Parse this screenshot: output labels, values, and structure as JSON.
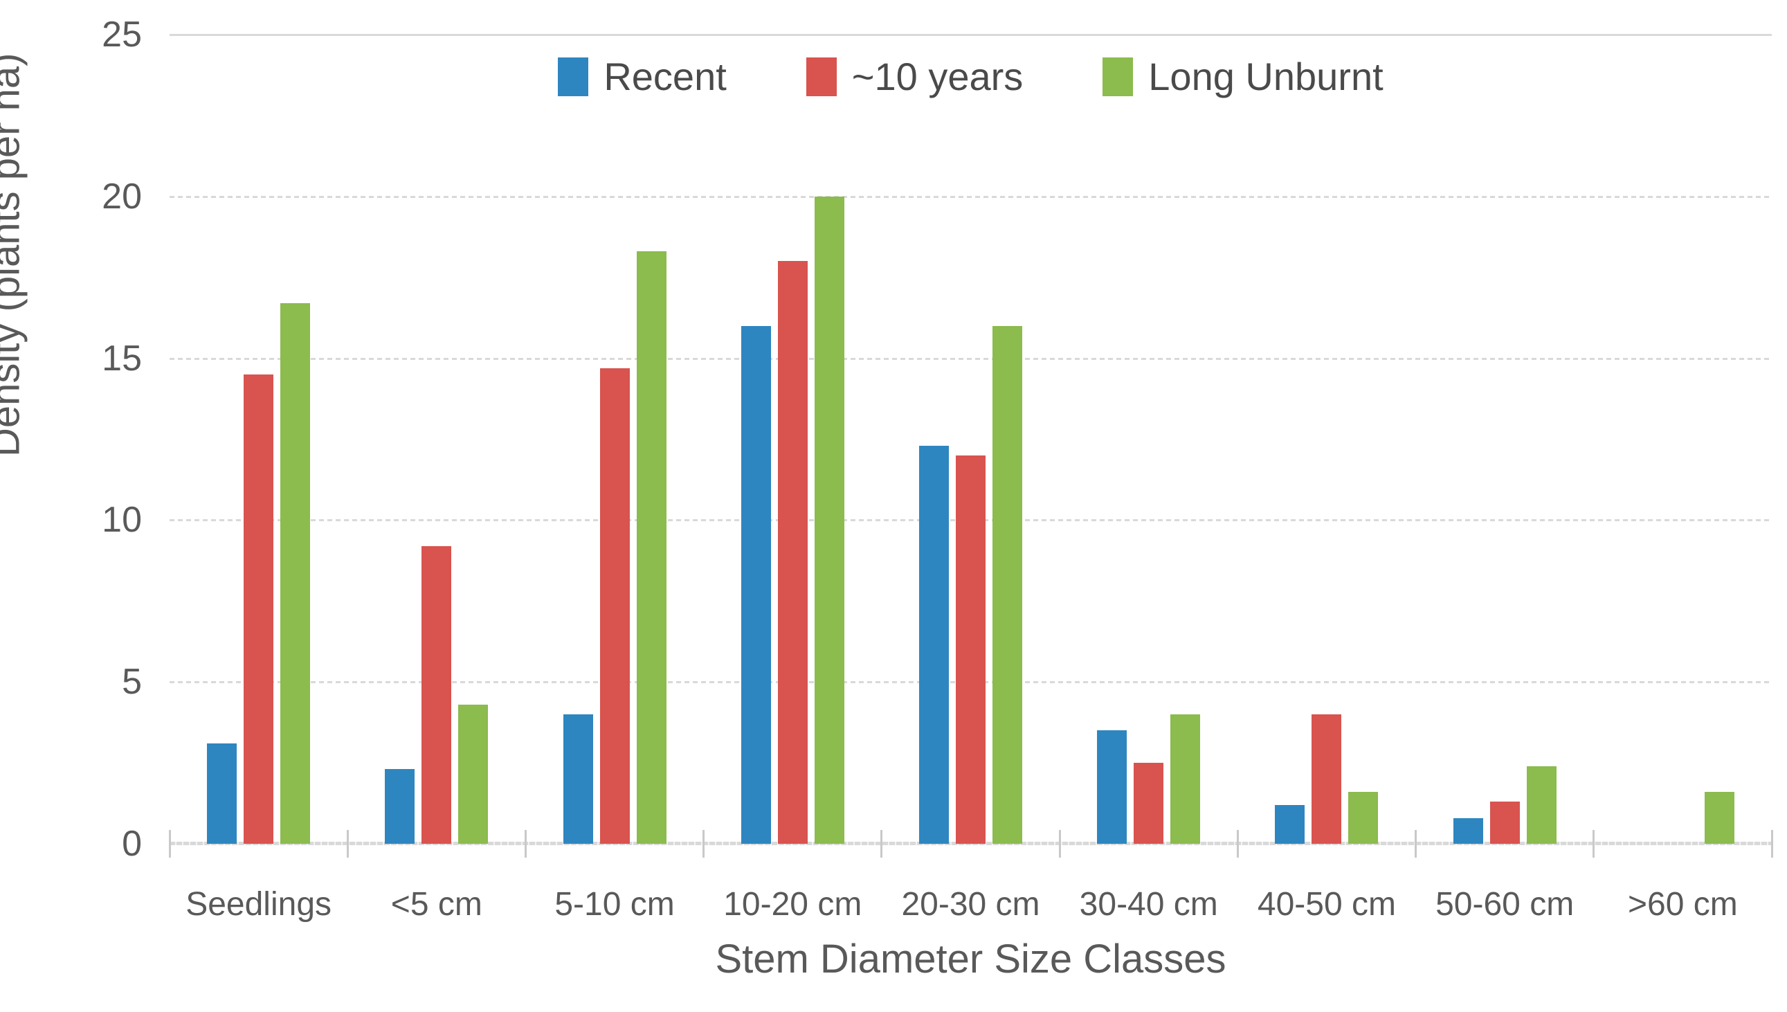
{
  "chart_data": {
    "type": "bar",
    "title": "",
    "xlabel": "Stem Diameter Size Classes",
    "ylabel": "Density (plants per ha)",
    "categories": [
      "Seedlings",
      "<5 cm",
      "5-10 cm",
      "10-20 cm",
      "20-30 cm",
      "30-40 cm",
      "40-50 cm",
      "50-60 cm",
      ">60 cm"
    ],
    "series": [
      {
        "name": "Recent",
        "color": "#2E86C0",
        "values": [
          3.1,
          2.3,
          4.0,
          16.0,
          12.3,
          3.5,
          1.2,
          0.8,
          0
        ]
      },
      {
        "name": "~10 years",
        "color": "#D9534F",
        "values": [
          14.5,
          9.2,
          14.7,
          18.0,
          12.0,
          2.5,
          4.0,
          1.3,
          0
        ]
      },
      {
        "name": "Long Unburnt",
        "color": "#8CBB4E",
        "values": [
          16.7,
          4.3,
          18.3,
          20.0,
          16.0,
          4.0,
          1.6,
          2.4,
          1.6
        ]
      }
    ],
    "ylim": [
      0,
      25
    ],
    "yticks": [
      0,
      5,
      10,
      15,
      20,
      25
    ],
    "grid": "horizontal",
    "legend_position": "top-center"
  },
  "styles": {
    "text_color": "#595959",
    "legend_text_color": "#4a4a4a",
    "gridline_color": "#d9d9d9",
    "background": "#ffffff"
  }
}
